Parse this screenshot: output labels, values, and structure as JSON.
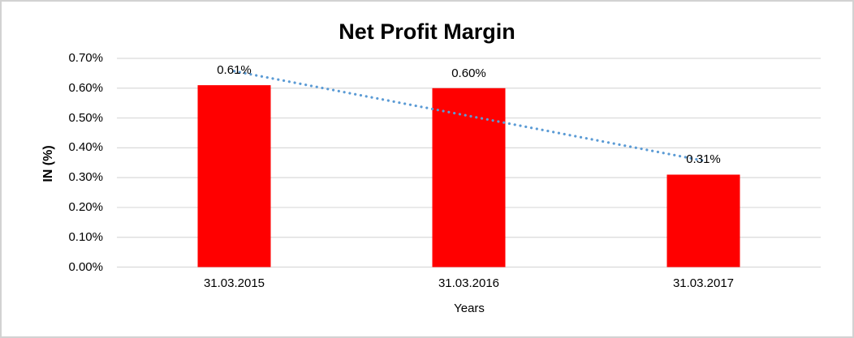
{
  "window": {
    "background_color": "#FFFFFF",
    "border_color": "#D2D2D2"
  },
  "chart_data": {
    "type": "bar",
    "title": "Net Profit Margin",
    "xlabel": "Years",
    "ylabel": "IN (%)",
    "categories": [
      "31.03.2015",
      "31.03.2016",
      "31.03.2017"
    ],
    "values": [
      0.61,
      0.6,
      0.31
    ],
    "data_labels": [
      "0.61%",
      "0.60%",
      "0.31%"
    ],
    "ytick_labels": [
      "0.00%",
      "0.10%",
      "0.20%",
      "0.30%",
      "0.40%",
      "0.50%",
      "0.60%",
      "0.70%"
    ],
    "ytick_values": [
      0.0,
      0.1,
      0.2,
      0.3,
      0.4,
      0.5,
      0.6,
      0.7
    ],
    "ylim": [
      0.0,
      0.7
    ],
    "grid": true,
    "legend_position": "none",
    "bar_color": "#FF0000",
    "gridline_color": "#D9D9D9",
    "trendline": {
      "type": "linear",
      "style": "dotted",
      "color": "#5B9BD5",
      "endpoint_values": [
        0.657,
        0.357
      ]
    }
  }
}
